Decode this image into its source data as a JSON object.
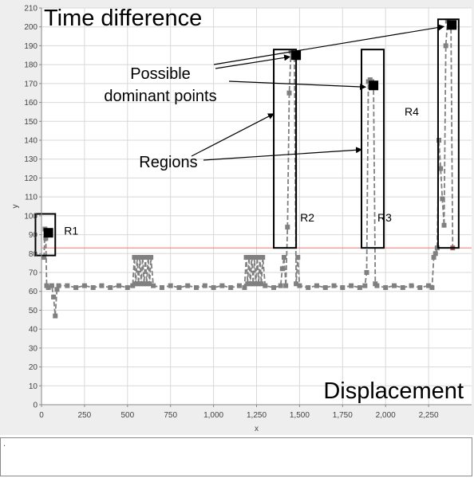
{
  "text_area": {
    "content": "."
  },
  "chart_data": {
    "type": "scatter",
    "title": "",
    "xlabel": "x",
    "ylabel": "y",
    "xlim": [
      0,
      2500
    ],
    "ylim": [
      0,
      210
    ],
    "x_ticks": [
      0,
      250,
      500,
      750,
      1000,
      1250,
      1500,
      1750,
      2000,
      2250
    ],
    "x_tick_labels": [
      "0",
      "250",
      "500",
      "750",
      "1,000",
      "1,250",
      "1,500",
      "1,750",
      "2,000",
      "2,250"
    ],
    "y_ticks": [
      0,
      10,
      20,
      30,
      40,
      50,
      60,
      70,
      80,
      90,
      100,
      110,
      120,
      130,
      140,
      150,
      160,
      170,
      180,
      190,
      200,
      210
    ],
    "grid": true,
    "colors": {
      "series": "#808080",
      "threshold": "#f08080",
      "annotation": "#000000",
      "background": "#ffffff",
      "panel": "#eeeeee",
      "grid": "#d8d8d8"
    },
    "threshold_line": {
      "y": 83
    },
    "series": [
      {
        "line_style": "dashed",
        "points": [
          [
            15,
            78
          ],
          [
            20,
            93
          ],
          [
            25,
            88
          ],
          [
            30,
            63
          ],
          [
            40,
            62
          ],
          [
            60,
            63
          ],
          [
            70,
            57
          ],
          [
            80,
            47
          ],
          [
            90,
            61
          ],
          [
            100,
            63
          ],
          [
            150,
            63
          ],
          [
            200,
            62
          ],
          [
            250,
            63
          ],
          [
            300,
            62
          ],
          [
            350,
            63
          ],
          [
            400,
            62
          ],
          [
            450,
            63
          ],
          [
            500,
            62
          ],
          [
            530,
            63
          ],
          [
            540,
            78
          ],
          [
            548,
            64
          ],
          [
            556,
            78
          ],
          [
            564,
            64
          ],
          [
            572,
            78
          ],
          [
            580,
            64
          ],
          [
            588,
            78
          ],
          [
            596,
            64
          ],
          [
            604,
            78
          ],
          [
            612,
            64
          ],
          [
            620,
            78
          ],
          [
            628,
            64
          ],
          [
            636,
            78
          ],
          [
            650,
            63
          ],
          [
            700,
            62
          ],
          [
            750,
            63
          ],
          [
            800,
            62
          ],
          [
            850,
            63
          ],
          [
            900,
            62
          ],
          [
            950,
            63
          ],
          [
            1000,
            62
          ],
          [
            1050,
            63
          ],
          [
            1100,
            62
          ],
          [
            1150,
            63
          ],
          [
            1180,
            62
          ],
          [
            1190,
            78
          ],
          [
            1198,
            64
          ],
          [
            1206,
            78
          ],
          [
            1214,
            64
          ],
          [
            1222,
            78
          ],
          [
            1230,
            64
          ],
          [
            1238,
            78
          ],
          [
            1246,
            64
          ],
          [
            1254,
            78
          ],
          [
            1262,
            64
          ],
          [
            1270,
            78
          ],
          [
            1278,
            64
          ],
          [
            1286,
            78
          ],
          [
            1300,
            63
          ],
          [
            1350,
            62
          ],
          [
            1390,
            63
          ],
          [
            1400,
            72
          ],
          [
            1410,
            78
          ],
          [
            1420,
            63
          ],
          [
            1430,
            94
          ],
          [
            1440,
            165
          ],
          [
            1450,
            187
          ],
          [
            1460,
            184
          ],
          [
            1470,
            185
          ],
          [
            1480,
            64
          ],
          [
            1490,
            78
          ],
          [
            1500,
            63
          ],
          [
            1550,
            62
          ],
          [
            1600,
            63
          ],
          [
            1650,
            62
          ],
          [
            1700,
            63
          ],
          [
            1750,
            62
          ],
          [
            1800,
            63
          ],
          [
            1850,
            62
          ],
          [
            1880,
            63
          ],
          [
            1890,
            70
          ],
          [
            1900,
            171
          ],
          [
            1910,
            172
          ],
          [
            1920,
            171
          ],
          [
            1930,
            168
          ],
          [
            1940,
            64
          ],
          [
            1950,
            63
          ],
          [
            2000,
            62
          ],
          [
            2050,
            63
          ],
          [
            2100,
            62
          ],
          [
            2150,
            63
          ],
          [
            2200,
            62
          ],
          [
            2250,
            63
          ],
          [
            2270,
            62
          ],
          [
            2280,
            78
          ],
          [
            2290,
            80
          ],
          [
            2300,
            83
          ],
          [
            2310,
            140
          ],
          [
            2320,
            125
          ],
          [
            2330,
            109
          ],
          [
            2340,
            95
          ],
          [
            2350,
            190
          ],
          [
            2360,
            203
          ],
          [
            2370,
            201
          ],
          [
            2380,
            202
          ],
          [
            2390,
            83
          ]
        ]
      }
    ],
    "dominant_points": [
      [
        40,
        91
      ],
      [
        1480,
        185
      ],
      [
        1930,
        169
      ],
      [
        2385,
        201
      ]
    ],
    "regions": [
      {
        "label": "R1",
        "x": [
          -35,
          80
        ],
        "y": [
          79,
          101
        ]
      },
      {
        "label": "R2",
        "x": [
          1350,
          1480
        ],
        "y": [
          83,
          188
        ]
      },
      {
        "label": "R3",
        "x": [
          1860,
          1990
        ],
        "y": [
          83,
          188
        ]
      },
      {
        "label": "R4",
        "x": [
          2305,
          2425
        ],
        "y": [
          83,
          204
        ]
      }
    ],
    "annotations": {
      "heading": "Time difference",
      "footer": "Displacement",
      "dominant_label": [
        "Possible",
        "dominant points"
      ],
      "regions_label": "Regions"
    }
  }
}
